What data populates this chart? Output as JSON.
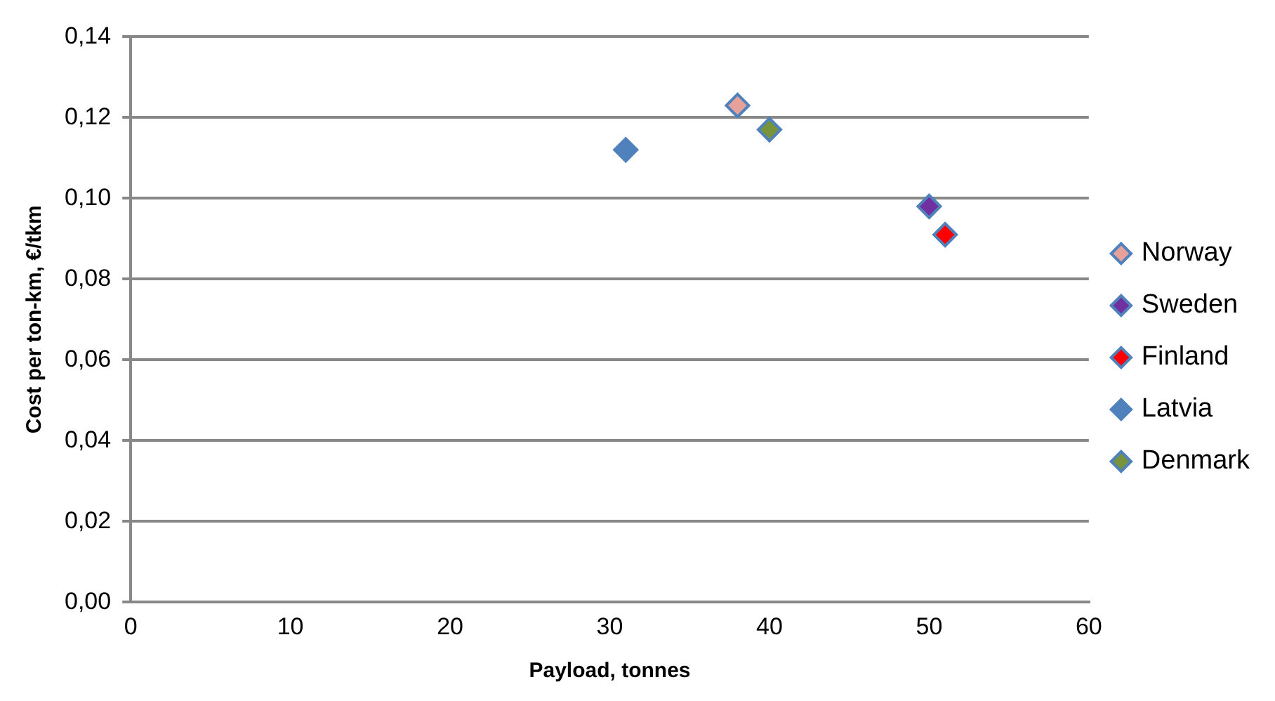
{
  "chart_data": {
    "type": "scatter",
    "xlabel": "Payload, tonnes",
    "ylabel": "Cost per ton-km, €/tkm",
    "series": [
      {
        "name": "Norway",
        "color": "#e6a19b",
        "x": [
          38
        ],
        "values": [
          0.123
        ]
      },
      {
        "name": "Sweden",
        "color": "#7030a0",
        "x": [
          50
        ],
        "values": [
          0.098
        ]
      },
      {
        "name": "Finland",
        "color": "#ff0000",
        "x": [
          51
        ],
        "values": [
          0.091
        ]
      },
      {
        "name": "Latvia",
        "color": "#4f81bd",
        "x": [
          31
        ],
        "values": [
          0.112
        ]
      },
      {
        "name": "Denmark",
        "color": "#77933c",
        "x": [
          40
        ],
        "values": [
          0.117
        ]
      }
    ],
    "xlim": [
      0,
      60
    ],
    "xticks": [
      0,
      10,
      20,
      30,
      40,
      50,
      60
    ],
    "ylim": [
      0,
      0.14
    ],
    "yticks": [
      {
        "value": 0,
        "label": "0,00"
      },
      {
        "value": 0.02,
        "label": "0,02"
      },
      {
        "value": 0.04,
        "label": "0,04"
      },
      {
        "value": 0.06,
        "label": "0,06"
      },
      {
        "value": 0.08,
        "label": "0,08"
      },
      {
        "value": 0.1,
        "label": "0,10"
      },
      {
        "value": 0.12,
        "label": "0,12"
      },
      {
        "value": 0.14,
        "label": "0,14"
      }
    ],
    "grid": "y",
    "legend": "right",
    "marker": "diamond"
  }
}
